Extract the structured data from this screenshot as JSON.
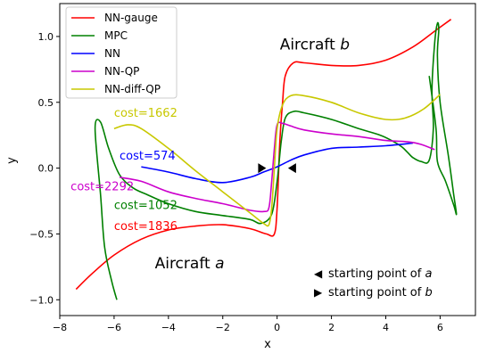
{
  "chart_data": {
    "type": "line",
    "title": "",
    "xlabel": "x",
    "ylabel": "y",
    "xlim": [
      -8,
      7.3
    ],
    "ylim": [
      -1.12,
      1.25
    ],
    "xticks": [
      -8,
      -6,
      -4,
      -2,
      0,
      2,
      4,
      6
    ],
    "yticks": [
      -1.0,
      -0.5,
      0.0,
      0.5,
      1.0
    ],
    "xtick_labels": [
      "−8",
      "−6",
      "−4",
      "−2",
      "0",
      "2",
      "4",
      "6"
    ],
    "ytick_labels": [
      "−1.0",
      "−0.5",
      "0.0",
      "0.5",
      "1.0"
    ],
    "grid": false,
    "legend_position": "top-left",
    "series": [
      {
        "name": "NN-gauge",
        "color": "#ff0000",
        "x": [
          -7.4,
          -6.8,
          -6.0,
          -5.0,
          -4.0,
          -3.0,
          -2.0,
          -1.0,
          -0.4,
          -0.1,
          0.0,
          0.1,
          0.2,
          0.3,
          0.6,
          1.0,
          2.0,
          3.0,
          4.0,
          5.0,
          5.8,
          6.4
        ],
        "y": [
          -0.92,
          -0.8,
          -0.66,
          -0.54,
          -0.47,
          -0.44,
          -0.43,
          -0.46,
          -0.5,
          -0.5,
          -0.3,
          0.2,
          0.5,
          0.7,
          0.8,
          0.8,
          0.78,
          0.78,
          0.82,
          0.92,
          1.04,
          1.13
        ]
      },
      {
        "name": "MPC",
        "color": "#008000",
        "x": [
          -5.9,
          -6.1,
          -6.35,
          -6.5,
          -6.7,
          -6.5,
          -6.2,
          -5.8,
          -5.3,
          -4.8,
          -4.0,
          -3.0,
          -2.0,
          -1.0,
          -0.6,
          -0.2,
          0.0,
          0.15,
          0.3,
          0.6,
          1.0,
          2.0,
          3.0,
          3.8,
          4.3,
          4.6,
          4.8,
          5.0,
          5.3,
          5.6,
          5.75,
          5.7,
          5.8,
          5.9,
          5.95,
          5.9,
          6.0,
          6.3,
          6.5,
          6.6,
          6.5,
          6.2,
          5.9,
          5.85,
          5.6
        ],
        "y": [
          -1.0,
          -0.85,
          -0.6,
          -0.2,
          0.3,
          0.35,
          0.15,
          -0.05,
          -0.15,
          -0.2,
          -0.27,
          -0.33,
          -0.36,
          -0.39,
          -0.42,
          -0.35,
          -0.1,
          0.2,
          0.38,
          0.43,
          0.42,
          0.37,
          0.3,
          0.25,
          0.2,
          0.16,
          0.12,
          0.08,
          0.05,
          0.06,
          0.3,
          0.6,
          0.95,
          1.1,
          1.05,
          0.85,
          0.5,
          0.1,
          -0.2,
          -0.35,
          -0.28,
          -0.1,
          0.05,
          0.3,
          0.7
        ]
      },
      {
        "name": "NN",
        "color": "#0000ff",
        "x": [
          -5.0,
          -4.0,
          -3.0,
          -2.0,
          -1.0,
          -0.5,
          0.0,
          0.5,
          1.0,
          2.0,
          3.0,
          4.0,
          5.0
        ],
        "y": [
          0.01,
          -0.03,
          -0.08,
          -0.11,
          -0.07,
          -0.03,
          0.01,
          0.06,
          0.1,
          0.15,
          0.16,
          0.17,
          0.19
        ]
      },
      {
        "name": "NN-QP",
        "color": "#cc00cc",
        "x": [
          -5.8,
          -5.0,
          -4.0,
          -3.0,
          -2.0,
          -1.0,
          -0.5,
          -0.3,
          -0.2,
          -0.1,
          0.0,
          0.2,
          0.5,
          1.0,
          2.0,
          3.0,
          4.0,
          4.8,
          5.3,
          5.8
        ],
        "y": [
          -0.07,
          -0.1,
          -0.18,
          -0.23,
          -0.27,
          -0.32,
          -0.33,
          -0.3,
          -0.1,
          0.15,
          0.33,
          0.34,
          0.32,
          0.29,
          0.26,
          0.24,
          0.21,
          0.2,
          0.18,
          0.14
        ]
      },
      {
        "name": "NN-diff-QP",
        "color": "#c8c800",
        "x": [
          -6.0,
          -5.5,
          -5.0,
          -4.0,
          -3.0,
          -2.0,
          -1.0,
          -0.5,
          -0.3,
          -0.2,
          -0.1,
          0.0,
          0.2,
          0.5,
          1.0,
          2.0,
          3.0,
          4.0,
          4.7,
          5.4,
          6.0
        ],
        "y": [
          0.3,
          0.33,
          0.3,
          0.15,
          -0.02,
          -0.18,
          -0.34,
          -0.42,
          -0.43,
          -0.3,
          0.0,
          0.3,
          0.48,
          0.55,
          0.55,
          0.5,
          0.42,
          0.37,
          0.38,
          0.45,
          0.56
        ]
      }
    ],
    "markers": [
      {
        "label": "starting point of a",
        "symbol": "◀",
        "x": 0.55,
        "y": 0.0
      },
      {
        "label": "starting point of b",
        "symbol": "▶",
        "x": -0.55,
        "y": 0.0
      }
    ],
    "annotations": [
      {
        "text": "cost=1662",
        "color": "#c8c800",
        "x": -6.0,
        "y": 0.39
      },
      {
        "text": "cost=574",
        "color": "#0000ff",
        "x": -5.8,
        "y": 0.065
      },
      {
        "text": "cost=2292",
        "color": "#cc00cc",
        "x": -7.6,
        "y": -0.17
      },
      {
        "text": "cost=1052",
        "color": "#008000",
        "x": -6.0,
        "y": -0.31
      },
      {
        "text": "cost=1836",
        "color": "#ff0000",
        "x": -6.0,
        "y": -0.47
      }
    ],
    "labels": [
      {
        "prefix": "Aircraft ",
        "italic": "b",
        "x": 0.1,
        "y": 0.9
      },
      {
        "prefix": "Aircraft ",
        "italic": "a",
        "x": -4.5,
        "y": -0.76
      }
    ],
    "marker_legend": [
      {
        "symbol": "◀",
        "text": "starting point of ",
        "italic": "a"
      },
      {
        "symbol": "▶",
        "text": "starting point of ",
        "italic": "b"
      }
    ]
  }
}
